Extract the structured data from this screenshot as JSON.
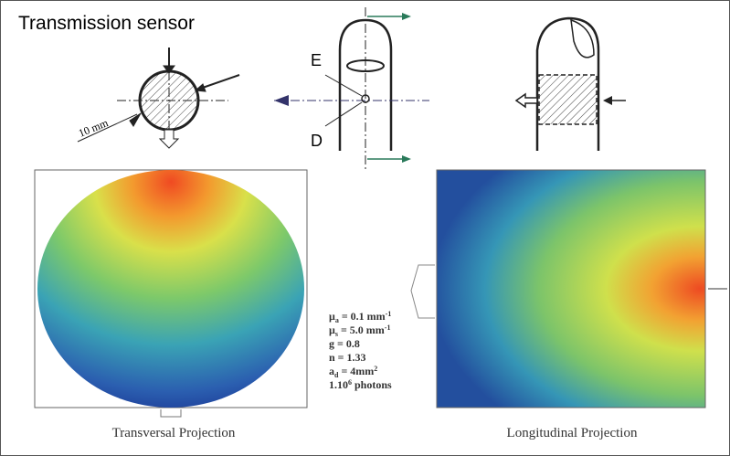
{
  "header": {
    "title": "Transmission sensor"
  },
  "cross_section": {
    "diameter_label": "10 mm"
  },
  "finger_front": {
    "emitter_label": "E",
    "detector_label": "D"
  },
  "parameters": [
    {
      "symbol": "μ",
      "sub": "a",
      "text": " = 0.1 mm",
      "sup": "-1"
    },
    {
      "symbol": "μ",
      "sub": "s",
      "text": " = 5.0 mm",
      "sup": "-1"
    },
    {
      "text": "g = 0.8"
    },
    {
      "text": "n = 1.33"
    },
    {
      "symbol": "a",
      "sub": "d",
      "text": " = 4mm",
      "sup": "2"
    },
    {
      "text": "1.10",
      "sup": "6",
      "tail": " photons"
    }
  ],
  "captions": {
    "transversal": "Transversal Projection",
    "longitudinal": "Longitudinal Projection"
  }
}
